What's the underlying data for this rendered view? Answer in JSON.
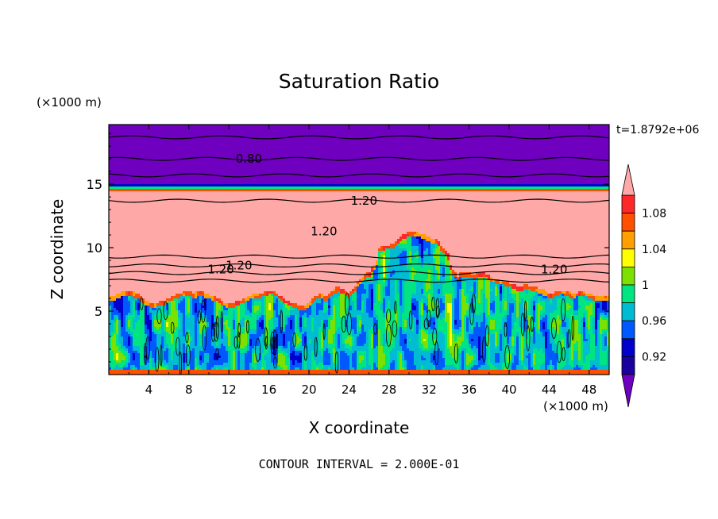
{
  "chart_data": {
    "type": "heatmap",
    "title": "Saturation Ratio",
    "xlabel": "X coordinate",
    "ylabel": "Z coordinate",
    "x_unit": "(×1000 m)",
    "y_unit": "(×1000 m)",
    "time_label": "t=1.8792e+06",
    "footer": "CONTOUR INTERVAL = 2.000E-01",
    "xlim": [
      0,
      50
    ],
    "ylim": [
      0,
      19.7
    ],
    "x_ticks": [
      "4",
      "8",
      "12",
      "16",
      "20",
      "24",
      "28",
      "32",
      "36",
      "40",
      "44",
      "48"
    ],
    "y_ticks": [
      "5",
      "10",
      "15"
    ],
    "colorbar": {
      "levels": [
        0.9,
        0.92,
        0.94,
        0.96,
        0.98,
        1.0,
        1.02,
        1.04,
        1.06,
        1.08,
        1.1
      ],
      "tick_labels": [
        "1.08",
        "1.04",
        "1",
        "0.96",
        "0.92"
      ],
      "tick_values": [
        1.08,
        1.04,
        1.0,
        0.96,
        0.92
      ],
      "colors": [
        "#5c00b0",
        "#1a009e",
        "#0000cc",
        "#0058ff",
        "#00bcd2",
        "#00e482",
        "#7ce000",
        "#ffff00",
        "#ffa000",
        "#ff5000",
        "#ff2828"
      ],
      "over_color": "#ffa8a8",
      "under_color": "#7000c0"
    },
    "contour_labels": [
      {
        "text": "0.80",
        "x": 14,
        "z": 17
      },
      {
        "text": "1.20",
        "x": 25.5,
        "z": 13.7
      },
      {
        "text": "1.20",
        "x": 21.5,
        "z": 11.3
      },
      {
        "text": "1.20",
        "x": 11.2,
        "z": 8.3
      },
      {
        "text": "1.20",
        "x": 13,
        "z": 8.6
      },
      {
        "text": "1.20",
        "x": 44.5,
        "z": 8.3
      }
    ],
    "contour_lines_z": [
      18.7,
      17.0,
      15.7,
      13.7,
      9.3,
      8.6,
      8.0,
      7.4
    ]
  }
}
